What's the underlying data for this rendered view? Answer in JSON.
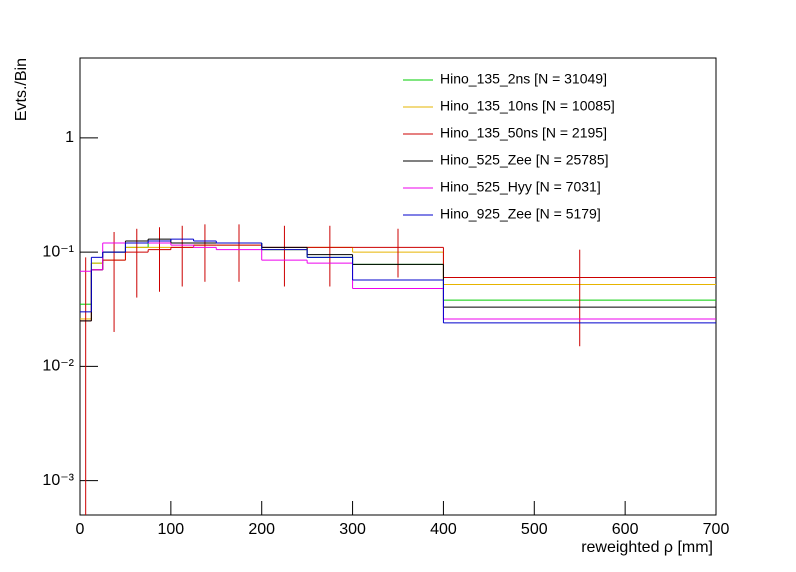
{
  "chart_data": {
    "type": "histogram",
    "xlabel": "reweighted  ρ [mm]",
    "ylabel": "Evts./Bin",
    "bins": [
      0,
      12.5,
      25,
      50,
      75,
      100,
      125,
      150,
      200,
      250,
      300,
      400,
      700
    ],
    "series": [
      {
        "name": "Hino_135_2ns [N = 31049]",
        "color": "#00cc00",
        "values": [
          0.035,
          0.08,
          0.1,
          0.11,
          0.12,
          0.12,
          0.12,
          0.12,
          0.105,
          0.09,
          0.078,
          0.038
        ]
      },
      {
        "name": "Hino_135_10ns [N = 10085]",
        "color": "#e6b400",
        "values": [
          0.026,
          0.08,
          0.085,
          0.11,
          0.11,
          0.11,
          0.115,
          0.115,
          0.105,
          0.11,
          0.1,
          0.052
        ]
      },
      {
        "name": "Hino_135_50ns [N = 2195]",
        "color": "#cc0000",
        "values": [
          0.025,
          0.07,
          0.085,
          0.1,
          0.105,
          0.11,
          0.115,
          0.115,
          0.11,
          0.11,
          0.11,
          0.06
        ],
        "errors": [
          0.065,
          null,
          0.065,
          0.06,
          0.06,
          0.06,
          0.06,
          0.06,
          0.06,
          0.06,
          0.05,
          0.045
        ]
      },
      {
        "name": "Hino_525_Zee [N = 25785]",
        "color": "#000000",
        "values": [
          0.025,
          0.07,
          0.1,
          0.125,
          0.13,
          0.12,
          0.12,
          0.12,
          0.11,
          0.095,
          0.078,
          0.033
        ]
      },
      {
        "name": "Hino_525_Hyy [N = 7031]",
        "color": "#ee00ee",
        "values": [
          0.068,
          0.07,
          0.12,
          0.12,
          0.12,
          0.115,
          0.11,
          0.105,
          0.085,
          0.08,
          0.048,
          0.026
        ]
      },
      {
        "name": "Hino_925_Zee [N = 5179]",
        "color": "#0000cc",
        "values": [
          0.03,
          0.09,
          0.1,
          0.12,
          0.125,
          0.13,
          0.125,
          0.12,
          0.105,
          0.09,
          0.057,
          0.024
        ]
      }
    ],
    "xlim": [
      0,
      700
    ],
    "xticks": [
      0,
      100,
      200,
      300,
      400,
      500,
      600,
      700
    ],
    "ylim": [
      0.0005,
      5
    ],
    "log_y": true,
    "yticks": [
      {
        "value": 0.001,
        "label": "10⁻³"
      },
      {
        "value": 0.01,
        "label": "10⁻²"
      },
      {
        "value": 0.1,
        "label": "10⁻¹"
      },
      1
    ],
    "legend": "upper right"
  }
}
